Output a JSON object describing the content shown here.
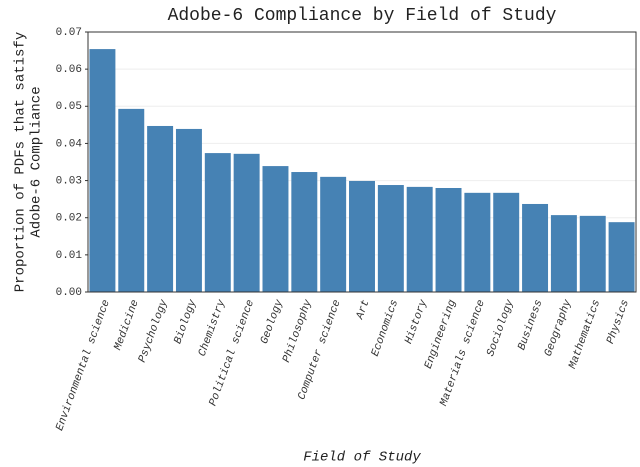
{
  "chart_data": {
    "type": "bar",
    "title": "Adobe-6 Compliance by Field of Study",
    "xlabel": "Field of Study",
    "ylabel": [
      "Proportion of PDFs that satisfy",
      "Adobe-6 Compliance"
    ],
    "categories": [
      "Environmental science",
      "Medicine",
      "Psychology",
      "Biology",
      "Chemistry",
      "Political science",
      "Geology",
      "Philosophy",
      "Computer science",
      "Art",
      "Economics",
      "History",
      "Engineering",
      "Materials science",
      "Sociology",
      "Business",
      "Geography",
      "Mathematics",
      "Physics"
    ],
    "values": [
      0.0654,
      0.0493,
      0.0447,
      0.0439,
      0.0374,
      0.0372,
      0.0339,
      0.0323,
      0.031,
      0.0299,
      0.0288,
      0.0283,
      0.028,
      0.0267,
      0.0267,
      0.0237,
      0.0207,
      0.0205,
      0.0188
    ],
    "color": "#4682b4",
    "ylim": [
      0,
      0.07
    ],
    "yticks": [
      {
        "value": 0,
        "label": "0.00"
      },
      0.01,
      0.02,
      0.03,
      0.04,
      0.05,
      0.06,
      0.07
    ],
    "grid": true
  }
}
